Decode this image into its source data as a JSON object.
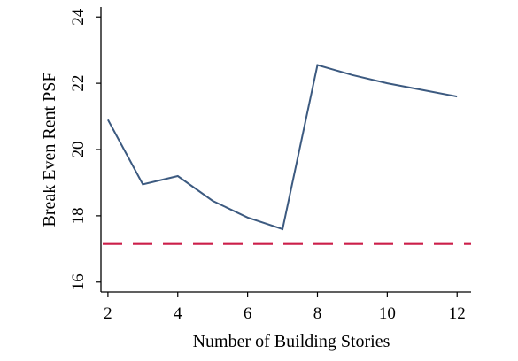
{
  "chart_data": {
    "type": "line",
    "xlabel": "Number of Building Stories",
    "ylabel": "Break Even Rent PSF",
    "xlim": [
      1.8,
      12.4
    ],
    "ylim": [
      15.7,
      24.3
    ],
    "x_ticks": [
      "2",
      "4",
      "6",
      "8",
      "10",
      "12"
    ],
    "y_ticks": [
      "16",
      "18",
      "20",
      "22",
      "24"
    ],
    "grid": false,
    "series": [
      {
        "x": [
          2,
          3,
          4,
          5,
          6,
          7,
          8,
          9,
          10,
          11,
          12
        ],
        "y": [
          20.9,
          18.95,
          19.2,
          18.45,
          17.95,
          17.6,
          22.55,
          22.25,
          22.0,
          21.8,
          21.6
        ],
        "color": "#3c5a80"
      }
    ],
    "reference_lines": [
      {
        "orientation": "horizontal",
        "y": 17.15,
        "style": "dashed",
        "color": "#cc1f4a"
      }
    ]
  }
}
